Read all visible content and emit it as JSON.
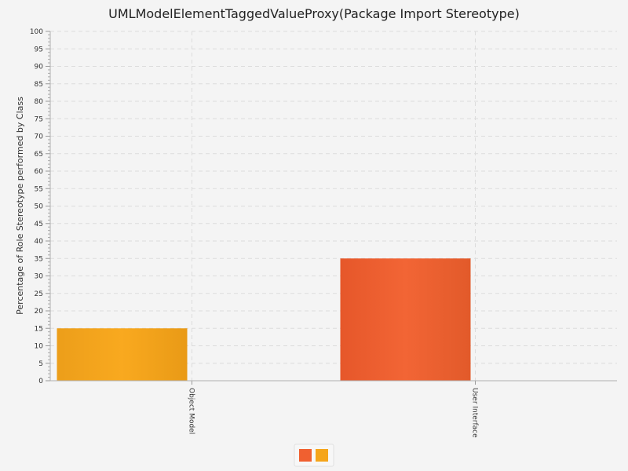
{
  "chart_data": {
    "type": "bar",
    "title": "UMLModelElementTaggedValueProxy(Package Import Stereotype)",
    "xlabel": "",
    "ylabel": "Percentage of Role Stereotype performed by Class",
    "categories": [
      "Object Model",
      "User Interface"
    ],
    "series": [
      {
        "values": [
          0,
          35
        ],
        "color": "#f06030"
      },
      {
        "values": [
          15,
          0
        ],
        "color": "#f5a51a"
      }
    ],
    "ylim": [
      0,
      100
    ],
    "ytick_step": 5,
    "grid": true,
    "legend_position": "bottom"
  }
}
